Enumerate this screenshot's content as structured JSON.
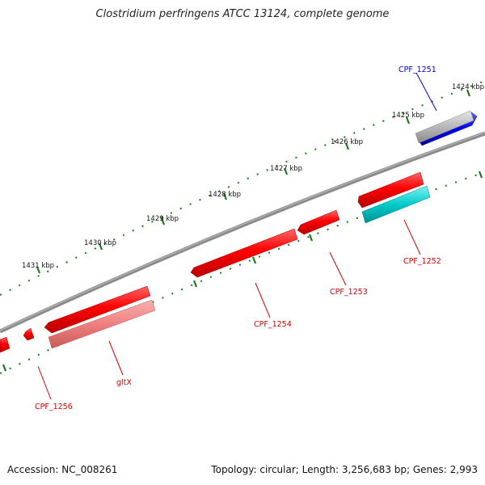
{
  "title": "Clostridium perfringens ATCC 13124, complete genome",
  "footer": {
    "accession": "Accession: NC_008261",
    "topology": "Topology: circular; Length: 3,256,683 bp; Genes: 2,993"
  },
  "scale_ticks": [
    "1424 kbp",
    "1425 kbp",
    "1426 kbp",
    "1427 kbp",
    "1428 kbp",
    "1429 kbp",
    "1430 kbp",
    "1431 kbp"
  ],
  "gene_labels": [
    "CPF_1251",
    "CPF_1252",
    "CPF_1253",
    "CPF_1254",
    "gltX",
    "CPF_1256"
  ],
  "colors": {
    "backbone": "#808080",
    "gene_red": "#ff0000",
    "gene_pink": "#f08080",
    "gene_cyan": "#00cccc",
    "gene_blue": "#0000ee",
    "gene_gray": "#b8b8b8",
    "tick_green": "#1a7a1a",
    "label_red": "#d00000",
    "label_blue": "#0000cc"
  }
}
